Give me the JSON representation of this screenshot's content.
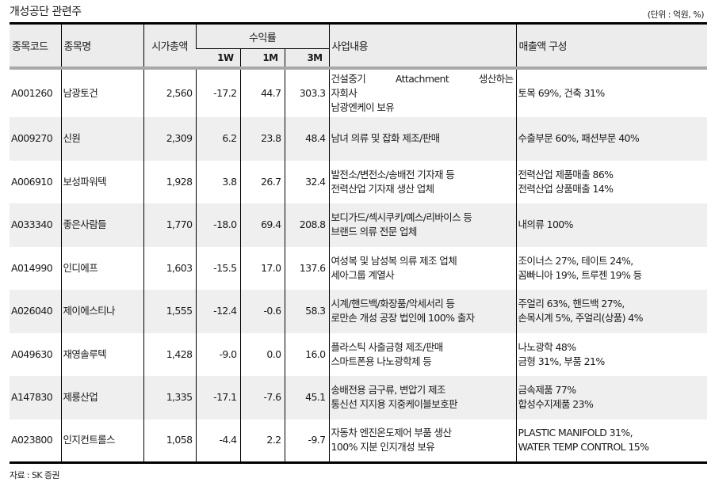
{
  "title": "개성공단 관련주",
  "unit": "(단위 : 억원, %)",
  "source": "자료 : SK 증권",
  "headers": {
    "code": "종목코드",
    "name": "종목명",
    "market_cap": "시가총액",
    "returns_group": "수익률",
    "r1w": "1W",
    "r1m": "1M",
    "r3m": "3M",
    "business": "사업내용",
    "sales": "매출액 구성"
  },
  "rows": [
    {
      "code": "A001260",
      "name": "남광토건",
      "market_cap": "2,560",
      "r1w": "-17.2",
      "r1m": "44.7",
      "r3m": "303.3",
      "business": [
        "건설중기",
        "Attachment",
        "생산하는",
        "자회사",
        "남광엔케이 보유"
      ],
      "sales": [
        "토목 69%, 건축 31%"
      ]
    },
    {
      "code": "A009270",
      "name": "신원",
      "market_cap": "2,309",
      "r1w": "6.2",
      "r1m": "23.8",
      "r3m": "48.4",
      "business": [
        "남녀 의류 및 잡화 제조/판매"
      ],
      "sales": [
        "수출부문 60%, 패션부문 40%"
      ]
    },
    {
      "code": "A006910",
      "name": "보성파워텍",
      "market_cap": "1,928",
      "r1w": "3.8",
      "r1m": "26.7",
      "r3m": "32.4",
      "business": [
        "발전소/변전소/송배전 기자재 등",
        "전력산업 기자재 생산 업체"
      ],
      "sales": [
        "전력산업 제품매출 86%",
        "전력산업 상품매출 14%"
      ]
    },
    {
      "code": "A033340",
      "name": "좋은사람들",
      "market_cap": "1,770",
      "r1w": "-18.0",
      "r1m": "69.4",
      "r3m": "208.8",
      "business": [
        "보디가드/섹시쿠키/예스/리바이스 등",
        "브랜드 의류 전문 업체"
      ],
      "sales": [
        "내의류 100%"
      ]
    },
    {
      "code": "A014990",
      "name": "인디에프",
      "market_cap": "1,603",
      "r1w": "-15.5",
      "r1m": "17.0",
      "r3m": "137.6",
      "business": [
        "여성복 및 남성복 의류 제조 업체",
        "세아그룹 계열사"
      ],
      "sales": [
        "조이너스 27%, 테이트 24%,",
        "꼼빠니아 19%, 트루젠 19% 등"
      ]
    },
    {
      "code": "A026040",
      "name": "제이에스티나",
      "market_cap": "1,555",
      "r1w": "-12.4",
      "r1m": "-0.6",
      "r3m": "58.3",
      "business": [
        "시계/핸드백/화장품/악세서리 등",
        "로만손 개성 공장 법인에 100% 출자"
      ],
      "sales": [
        "주얼리 63%, 핸드백 27%,",
        "손목시계 5%, 주얼리(상품) 4%"
      ]
    },
    {
      "code": "A049630",
      "name": "재영솔루텍",
      "market_cap": "1,428",
      "r1w": "-9.0",
      "r1m": "0.0",
      "r3m": "16.0",
      "business": [
        "플라스틱 사출금형 제조/판매",
        "스마트폰용 나노광학제 등"
      ],
      "sales": [
        "나노광학 48%",
        "금형 31%, 부품 21%"
      ]
    },
    {
      "code": "A147830",
      "name": "제룡산업",
      "market_cap": "1,335",
      "r1w": "-17.1",
      "r1m": "-7.6",
      "r3m": "45.1",
      "business": [
        "송배전용 금구류, 변압기 제조",
        "통신선 지지용 지중케이블보호판"
      ],
      "sales": [
        "금속제품 77%",
        "합성수지제품 23%"
      ]
    },
    {
      "code": "A023800",
      "name": "인지컨트롤스",
      "market_cap": "1,058",
      "r1w": "-4.4",
      "r1m": "2.2",
      "r3m": "-9.7",
      "business": [
        "자동차 엔진온도제어 부품 생산",
        "100% 지분 인지개성 보유"
      ],
      "sales": [
        "PLASTIC MANIFOLD 31%,",
        "WATER TEMP CONTROL 15%"
      ]
    }
  ],
  "colors": {
    "header_bg": "#ececec",
    "shaded_row_bg": "#efefef",
    "header_rule": "#a8a8a8"
  }
}
